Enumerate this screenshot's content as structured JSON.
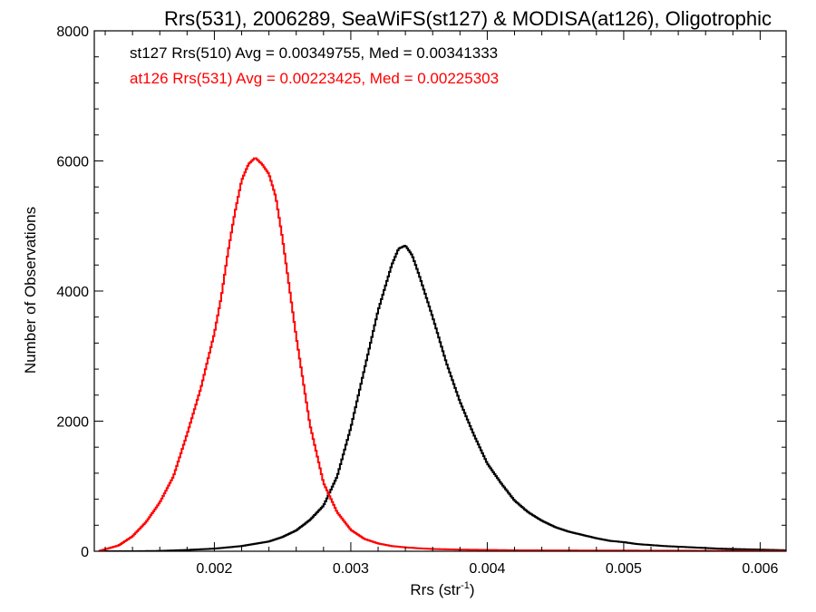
{
  "chart_data": {
    "type": "line",
    "title": "Rrs(531), 2006289, SeaWiFS(st127) & MODISA(at126), Oligotrophic",
    "xlabel_main": "Rrs (str",
    "xlabel_sup": "-1",
    "xlabel_close": ")",
    "ylabel": "Number of Observations",
    "xlim": [
      0.00112,
      0.00619
    ],
    "ylim": [
      0,
      8000
    ],
    "x_ticks": [
      {
        "value": 0.002,
        "label": "0.002"
      },
      {
        "value": 0.003,
        "label": "0.003"
      },
      {
        "value": 0.004,
        "label": "0.004"
      },
      {
        "value": 0.005,
        "label": "0.005"
      },
      {
        "value": 0.006,
        "label": "0.006"
      }
    ],
    "y_ticks": [
      {
        "value": 0,
        "label": "0"
      },
      {
        "value": 2000,
        "label": "2000"
      },
      {
        "value": 4000,
        "label": "4000"
      },
      {
        "value": 6000,
        "label": "6000"
      },
      {
        "value": 8000,
        "label": "8000"
      }
    ],
    "legend_position": "top-left",
    "series": [
      {
        "legend": "st127 Rrs(510) Avg = 0.00349755, Med = 0.00341333",
        "color": "#000000",
        "style": "step",
        "x": [
          0.0012,
          0.0014,
          0.0016,
          0.0018,
          0.002,
          0.0022,
          0.0024,
          0.0025,
          0.0026,
          0.0027,
          0.0028,
          0.0029,
          0.003,
          0.0031,
          0.0032,
          0.0033,
          0.00335,
          0.0034,
          0.00345,
          0.0035,
          0.0036,
          0.0037,
          0.0038,
          0.0039,
          0.004,
          0.0041,
          0.0042,
          0.0043,
          0.0044,
          0.0045,
          0.0046,
          0.0047,
          0.0048,
          0.0049,
          0.005,
          0.0051,
          0.0052,
          0.0053,
          0.0054,
          0.0055,
          0.0056,
          0.0057,
          0.0058,
          0.0059,
          0.006,
          0.0061,
          0.0062
        ],
        "y": [
          0,
          0,
          5,
          20,
          40,
          80,
          150,
          220,
          320,
          480,
          700,
          1150,
          1900,
          2800,
          3700,
          4400,
          4650,
          4700,
          4550,
          4250,
          3600,
          2900,
          2300,
          1800,
          1350,
          1050,
          780,
          600,
          470,
          370,
          300,
          250,
          200,
          160,
          140,
          110,
          95,
          80,
          70,
          60,
          50,
          40,
          35,
          30,
          25,
          20,
          15
        ]
      },
      {
        "legend": "at126 Rrs(531) Avg = 0.00223425, Med = 0.00225303",
        "color": "#ff0000",
        "style": "step",
        "x": [
          0.00115,
          0.0012,
          0.0013,
          0.0014,
          0.0015,
          0.0016,
          0.0017,
          0.0018,
          0.0019,
          0.002,
          0.00205,
          0.0021,
          0.00215,
          0.0022,
          0.00225,
          0.0023,
          0.00235,
          0.0024,
          0.00245,
          0.0025,
          0.0026,
          0.0027,
          0.0028,
          0.0029,
          0.003,
          0.0031,
          0.0032,
          0.0033,
          0.0034,
          0.0035,
          0.0036,
          0.0037,
          0.0038,
          0.004,
          0.0042,
          0.0045,
          0.005,
          0.0055,
          0.006,
          0.0062
        ],
        "y": [
          0,
          30,
          90,
          230,
          450,
          750,
          1150,
          1800,
          2500,
          3350,
          3900,
          4600,
          5200,
          5700,
          5950,
          6050,
          5950,
          5800,
          5450,
          4800,
          3300,
          1950,
          1050,
          600,
          330,
          190,
          120,
          80,
          60,
          45,
          35,
          30,
          25,
          20,
          15,
          12,
          10,
          8,
          6,
          5
        ]
      }
    ]
  }
}
